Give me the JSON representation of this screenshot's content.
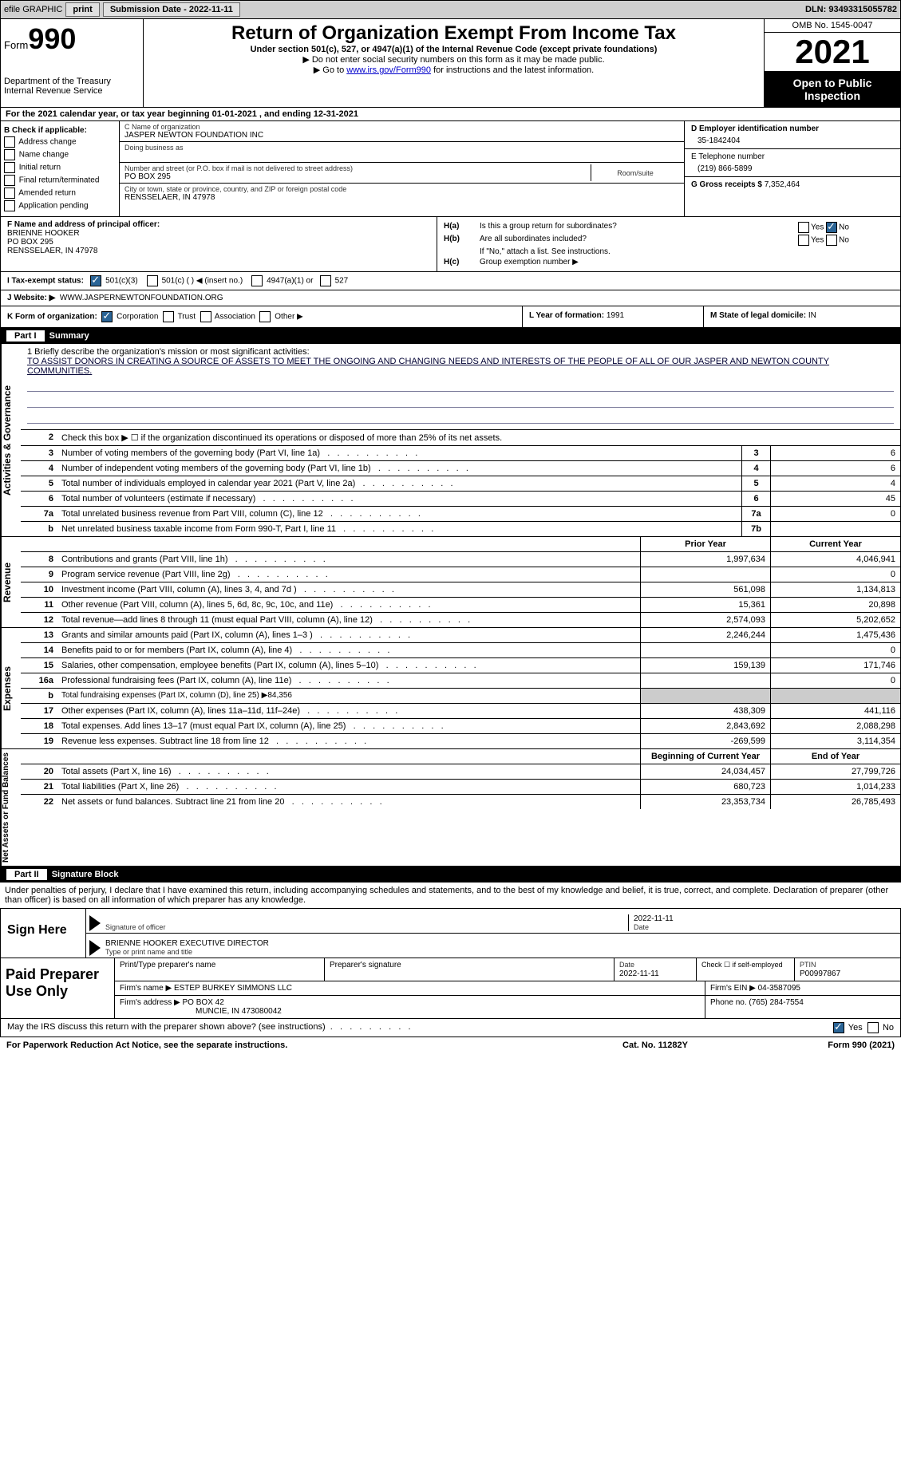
{
  "topbar": {
    "efile": "efile GRAPHIC",
    "print": "print",
    "sub_label": "Submission Date - 2022-11-11",
    "dln": "DLN: 93493315055782"
  },
  "header": {
    "form_label": "Form",
    "form_num": "990",
    "title": "Return of Organization Exempt From Income Tax",
    "subtitle": "Under section 501(c), 527, or 4947(a)(1) of the Internal Revenue Code (except private foundations)",
    "note1": "Do not enter social security numbers on this form as it may be made public.",
    "note2_pre": "Go to ",
    "note2_link": "www.irs.gov/Form990",
    "note2_post": " for instructions and the latest information.",
    "dept": "Department of the Treasury\nInternal Revenue Service",
    "omb": "OMB No. 1545-0047",
    "year": "2021",
    "open": "Open to Public Inspection"
  },
  "rowA": "For the 2021 calendar year, or tax year beginning 01-01-2021    , and ending 12-31-2021",
  "boxB": {
    "title": "B Check if applicable:",
    "items": [
      "Address change",
      "Name change",
      "Initial return",
      "Final return/terminated",
      "Amended return",
      "Application pending"
    ]
  },
  "boxC": {
    "name_label": "C Name of organization",
    "name": "JASPER NEWTON FOUNDATION INC",
    "dba_label": "Doing business as",
    "addr_label": "Number and street (or P.O. box if mail is not delivered to street address)",
    "room_label": "Room/suite",
    "addr": "PO BOX 295",
    "city_label": "City or town, state or province, country, and ZIP or foreign postal code",
    "city": "RENSSELAER, IN  47978"
  },
  "boxD": {
    "label": "D Employer identification number",
    "value": "35-1842404"
  },
  "boxE": {
    "label": "E Telephone number",
    "value": "(219) 866-5899"
  },
  "boxG": {
    "label": "G Gross receipts $",
    "value": "7,352,464"
  },
  "boxF": {
    "label": "F  Name and address of principal officer:",
    "name": "BRIENNE HOOKER",
    "addr1": "PO BOX 295",
    "addr2": "RENSSELAER, IN  47978"
  },
  "boxH": {
    "a_label": "H(a)",
    "a_text": "Is this a group return for subordinates?",
    "b_label": "H(b)",
    "b_text": "Are all subordinates included?",
    "b_note": "If \"No,\" attach a list. See instructions.",
    "c_label": "H(c)",
    "c_text": "Group exemption number ▶",
    "yes": "Yes",
    "no": "No"
  },
  "rowI": {
    "label": "I   Tax-exempt status:",
    "opts": [
      "501(c)(3)",
      "501(c) (  ) ◀ (insert no.)",
      "4947(a)(1) or",
      "527"
    ]
  },
  "rowJ": {
    "label": "J   Website: ▶",
    "value": "WWW.JASPERNEWTONFOUNDATION.ORG"
  },
  "rowK": {
    "label": "K Form of organization:",
    "opts": [
      "Corporation",
      "Trust",
      "Association",
      "Other ▶"
    ]
  },
  "rowL": {
    "label": "L Year of formation:",
    "value": "1991"
  },
  "rowM": {
    "label": "M State of legal domicile:",
    "value": "IN"
  },
  "part1": {
    "title": "Part I",
    "name": "Summary"
  },
  "mission": {
    "prompt": "1    Briefly describe the organization's mission or most significant activities:",
    "text": "TO ASSIST DONORS IN CREATING A SOURCE OF ASSETS TO MEET THE ONGOING AND CHANGING NEEDS AND INTERESTS OF THE PEOPLE OF ALL OF OUR JASPER AND NEWTON COUNTY COMMUNITIES."
  },
  "governance": {
    "side": "Activities & Governance",
    "rows": [
      {
        "n": "2",
        "d": "Check this box ▶ ☐ if the organization discontinued its operations or disposed of more than 25% of its net assets."
      },
      {
        "n": "3",
        "d": "Number of voting members of the governing body (Part VI, line 1a)",
        "box": "3",
        "v": "6"
      },
      {
        "n": "4",
        "d": "Number of independent voting members of the governing body (Part VI, line 1b)",
        "box": "4",
        "v": "6"
      },
      {
        "n": "5",
        "d": "Total number of individuals employed in calendar year 2021 (Part V, line 2a)",
        "box": "5",
        "v": "4"
      },
      {
        "n": "6",
        "d": "Total number of volunteers (estimate if necessary)",
        "box": "6",
        "v": "45"
      },
      {
        "n": "7a",
        "d": "Total unrelated business revenue from Part VIII, column (C), line 12",
        "box": "7a",
        "v": "0"
      },
      {
        "n": "b",
        "d": "Net unrelated business taxable income from Form 990-T, Part I, line 11",
        "box": "7b",
        "v": ""
      }
    ]
  },
  "revenue": {
    "side": "Revenue",
    "header": {
      "prior": "Prior Year",
      "current": "Current Year"
    },
    "rows": [
      {
        "n": "8",
        "d": "Contributions and grants (Part VIII, line 1h)",
        "p": "1,997,634",
        "c": "4,046,941"
      },
      {
        "n": "9",
        "d": "Program service revenue (Part VIII, line 2g)",
        "p": "",
        "c": "0"
      },
      {
        "n": "10",
        "d": "Investment income (Part VIII, column (A), lines 3, 4, and 7d )",
        "p": "561,098",
        "c": "1,134,813"
      },
      {
        "n": "11",
        "d": "Other revenue (Part VIII, column (A), lines 5, 6d, 8c, 9c, 10c, and 11e)",
        "p": "15,361",
        "c": "20,898"
      },
      {
        "n": "12",
        "d": "Total revenue—add lines 8 through 11 (must equal Part VIII, column (A), line 12)",
        "p": "2,574,093",
        "c": "5,202,652"
      }
    ]
  },
  "expenses": {
    "side": "Expenses",
    "rows": [
      {
        "n": "13",
        "d": "Grants and similar amounts paid (Part IX, column (A), lines 1–3 )",
        "p": "2,246,244",
        "c": "1,475,436"
      },
      {
        "n": "14",
        "d": "Benefits paid to or for members (Part IX, column (A), line 4)",
        "p": "",
        "c": "0"
      },
      {
        "n": "15",
        "d": "Salaries, other compensation, employee benefits (Part IX, column (A), lines 5–10)",
        "p": "159,139",
        "c": "171,746"
      },
      {
        "n": "16a",
        "d": "Professional fundraising fees (Part IX, column (A), line 11e)",
        "p": "",
        "c": "0"
      },
      {
        "n": "b",
        "d": "Total fundraising expenses (Part IX, column (D), line 25) ▶84,356",
        "p": "shade",
        "c": "shade"
      },
      {
        "n": "17",
        "d": "Other expenses (Part IX, column (A), lines 11a–11d, 11f–24e)",
        "p": "438,309",
        "c": "441,116"
      },
      {
        "n": "18",
        "d": "Total expenses. Add lines 13–17 (must equal Part IX, column (A), line 25)",
        "p": "2,843,692",
        "c": "2,088,298"
      },
      {
        "n": "19",
        "d": "Revenue less expenses. Subtract line 18 from line 12",
        "p": "-269,599",
        "c": "3,114,354"
      }
    ]
  },
  "netassets": {
    "side": "Net Assets or Fund Balances",
    "header": {
      "prior": "Beginning of Current Year",
      "current": "End of Year"
    },
    "rows": [
      {
        "n": "20",
        "d": "Total assets (Part X, line 16)",
        "p": "24,034,457",
        "c": "27,799,726"
      },
      {
        "n": "21",
        "d": "Total liabilities (Part X, line 26)",
        "p": "680,723",
        "c": "1,014,233"
      },
      {
        "n": "22",
        "d": "Net assets or fund balances. Subtract line 21 from line 20",
        "p": "23,353,734",
        "c": "26,785,493"
      }
    ]
  },
  "part2": {
    "title": "Part II",
    "name": "Signature Block"
  },
  "penalties": "Under penalties of perjury, I declare that I have examined this return, including accompanying schedules and statements, and to the best of my knowledge and belief, it is true, correct, and complete. Declaration of preparer (other than officer) is based on all information of which preparer has any knowledge.",
  "sign": {
    "label": "Sign Here",
    "sig_label": "Signature of officer",
    "date_label": "Date",
    "date": "2022-11-11",
    "name": "BRIENNE HOOKER  EXECUTIVE DIRECTOR",
    "name_label": "Type or print name and title"
  },
  "preparer": {
    "label": "Paid Preparer Use Only",
    "h1": "Print/Type preparer's name",
    "h2": "Preparer's signature",
    "h3_label": "Date",
    "h3": "2022-11-11",
    "h4": "Check ☐ if self-employed",
    "h5_label": "PTIN",
    "h5": "P00997867",
    "firm_name_label": "Firm's name    ▶",
    "firm_name": "ESTEP BURKEY SIMMONS LLC",
    "firm_ein_label": "Firm's EIN ▶",
    "firm_ein": "04-3587095",
    "firm_addr_label": "Firm's address ▶",
    "firm_addr1": "PO BOX 42",
    "firm_addr2": "MUNCIE, IN  473080042",
    "phone_label": "Phone no.",
    "phone": "(765) 284-7554"
  },
  "may": {
    "text": "May the IRS discuss this return with the preparer shown above? (see instructions)",
    "yes": "Yes",
    "no": "No"
  },
  "foot": {
    "left": "For Paperwork Reduction Act Notice, see the separate instructions.",
    "mid": "Cat. No. 11282Y",
    "right": "Form 990 (2021)"
  }
}
